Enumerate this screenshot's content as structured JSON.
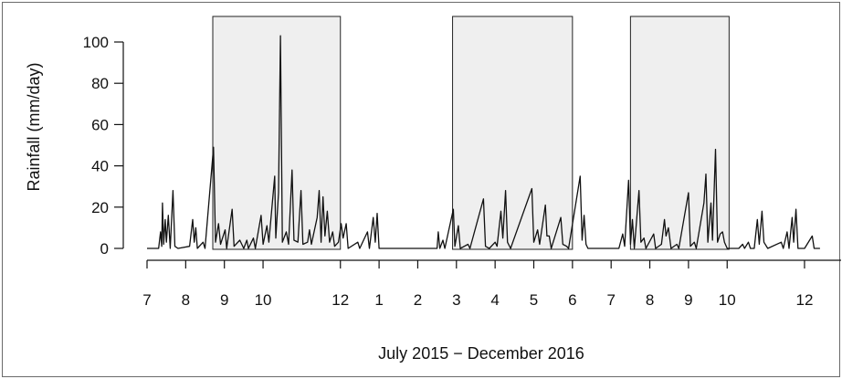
{
  "chart_data": {
    "type": "line",
    "xlabel": "July 2015 − December 2016",
    "ylabel": "Rainfall (mm/day)",
    "ylim": [
      0,
      105
    ],
    "y_ticks": [
      0,
      20,
      40,
      60,
      80,
      100
    ],
    "x_ticks": [
      {
        "label": "7",
        "month": 0.0
      },
      {
        "label": "8",
        "month": 1.0
      },
      {
        "label": "9",
        "month": 2.0
      },
      {
        "label": "10",
        "month": 3.0
      },
      {
        "label": "12",
        "month": 5.0
      },
      {
        "label": "1",
        "month": 6.0
      },
      {
        "label": "2",
        "month": 7.0
      },
      {
        "label": "3",
        "month": 8.0
      },
      {
        "label": "4",
        "month": 9.0
      },
      {
        "label": "5",
        "month": 10.0
      },
      {
        "label": "6",
        "month": 11.0
      },
      {
        "label": "7",
        "month": 12.0
      },
      {
        "label": "8",
        "month": 13.0
      },
      {
        "label": "9",
        "month": 14.0
      },
      {
        "label": "10",
        "month": 15.0
      },
      {
        "label": "12",
        "month": 17.0
      }
    ],
    "shaded_periods": [
      {
        "start_month": 1.7,
        "end_month": 5.0
      },
      {
        "start_month": 7.9,
        "end_month": 11.0
      },
      {
        "start_month": 12.5,
        "end_month": 15.05
      }
    ],
    "shade_color": "#efefef",
    "line_color": "#111111",
    "grid": false,
    "series": [
      {
        "values": [
          [
            0.0,
            0
          ],
          [
            0.3,
            0
          ],
          [
            0.35,
            8
          ],
          [
            0.38,
            1
          ],
          [
            0.4,
            22
          ],
          [
            0.43,
            2
          ],
          [
            0.47,
            14
          ],
          [
            0.5,
            3
          ],
          [
            0.55,
            16
          ],
          [
            0.6,
            0
          ],
          [
            0.67,
            28
          ],
          [
            0.72,
            1
          ],
          [
            0.8,
            0
          ],
          [
            1.1,
            1
          ],
          [
            1.18,
            14
          ],
          [
            1.22,
            3
          ],
          [
            1.26,
            10
          ],
          [
            1.3,
            0
          ],
          [
            1.45,
            3
          ],
          [
            1.5,
            0
          ],
          [
            1.72,
            49
          ],
          [
            1.77,
            3
          ],
          [
            1.85,
            12
          ],
          [
            1.9,
            2
          ],
          [
            2.02,
            9
          ],
          [
            2.06,
            0
          ],
          [
            2.2,
            19
          ],
          [
            2.25,
            1
          ],
          [
            2.4,
            4
          ],
          [
            2.5,
            0
          ],
          [
            2.58,
            4
          ],
          [
            2.62,
            0
          ],
          [
            2.75,
            5
          ],
          [
            2.8,
            0
          ],
          [
            2.95,
            16
          ],
          [
            3.0,
            2
          ],
          [
            3.1,
            11
          ],
          [
            3.15,
            3
          ],
          [
            3.3,
            35
          ],
          [
            3.33,
            5
          ],
          [
            3.4,
            27
          ],
          [
            3.45,
            103
          ],
          [
            3.5,
            3
          ],
          [
            3.6,
            8
          ],
          [
            3.66,
            2
          ],
          [
            3.75,
            38
          ],
          [
            3.8,
            4
          ],
          [
            3.9,
            3
          ],
          [
            3.98,
            28
          ],
          [
            4.03,
            2
          ],
          [
            4.15,
            3
          ],
          [
            4.2,
            9
          ],
          [
            4.25,
            2
          ],
          [
            4.4,
            15
          ],
          [
            4.45,
            28
          ],
          [
            4.5,
            3
          ],
          [
            4.55,
            25
          ],
          [
            4.6,
            6
          ],
          [
            4.66,
            18
          ],
          [
            4.72,
            3
          ],
          [
            4.8,
            8
          ],
          [
            4.85,
            1
          ],
          [
            4.95,
            3
          ],
          [
            5.02,
            12
          ],
          [
            5.07,
            5
          ],
          [
            5.15,
            12
          ],
          [
            5.2,
            0
          ],
          [
            5.45,
            3
          ],
          [
            5.5,
            0
          ],
          [
            5.7,
            8
          ],
          [
            5.75,
            0
          ],
          [
            5.85,
            15
          ],
          [
            5.9,
            3
          ],
          [
            5.95,
            17
          ],
          [
            6.0,
            0
          ],
          [
            6.5,
            0
          ],
          [
            7.0,
            0
          ],
          [
            7.5,
            0
          ],
          [
            7.53,
            8
          ],
          [
            7.57,
            0
          ],
          [
            7.65,
            4
          ],
          [
            7.7,
            0
          ],
          [
            7.92,
            19
          ],
          [
            7.96,
            1
          ],
          [
            8.05,
            11
          ],
          [
            8.1,
            0
          ],
          [
            8.3,
            2
          ],
          [
            8.35,
            0
          ],
          [
            8.7,
            24
          ],
          [
            8.75,
            1
          ],
          [
            8.85,
            0
          ],
          [
            9.0,
            3
          ],
          [
            9.05,
            1
          ],
          [
            9.15,
            18
          ],
          [
            9.2,
            5
          ],
          [
            9.27,
            28
          ],
          [
            9.32,
            3
          ],
          [
            9.4,
            0
          ],
          [
            9.95,
            29
          ],
          [
            10.0,
            3
          ],
          [
            10.1,
            9
          ],
          [
            10.15,
            2
          ],
          [
            10.3,
            21
          ],
          [
            10.34,
            6
          ],
          [
            10.4,
            6
          ],
          [
            10.45,
            0
          ],
          [
            10.7,
            15
          ],
          [
            10.75,
            2
          ],
          [
            10.85,
            1
          ],
          [
            10.9,
            0
          ],
          [
            11.2,
            35
          ],
          [
            11.25,
            4
          ],
          [
            11.3,
            16
          ],
          [
            11.35,
            2
          ],
          [
            11.4,
            0
          ],
          [
            11.6,
            0
          ],
          [
            12.2,
            0
          ],
          [
            12.3,
            7
          ],
          [
            12.35,
            1
          ],
          [
            12.45,
            33
          ],
          [
            12.5,
            2
          ],
          [
            12.55,
            14
          ],
          [
            12.6,
            0
          ],
          [
            12.72,
            28
          ],
          [
            12.77,
            3
          ],
          [
            12.85,
            5
          ],
          [
            12.9,
            0
          ],
          [
            13.1,
            7
          ],
          [
            13.15,
            0
          ],
          [
            13.3,
            2
          ],
          [
            13.38,
            14
          ],
          [
            13.42,
            6
          ],
          [
            13.48,
            10
          ],
          [
            13.55,
            0
          ],
          [
            13.7,
            2
          ],
          [
            13.75,
            0
          ],
          [
            14.0,
            27
          ],
          [
            14.05,
            1
          ],
          [
            14.15,
            3
          ],
          [
            14.2,
            0
          ],
          [
            14.4,
            22
          ],
          [
            14.45,
            36
          ],
          [
            14.5,
            3
          ],
          [
            14.58,
            22
          ],
          [
            14.62,
            4
          ],
          [
            14.7,
            48
          ],
          [
            14.75,
            3
          ],
          [
            14.82,
            7
          ],
          [
            14.88,
            8
          ],
          [
            14.93,
            3
          ],
          [
            15.0,
            0
          ],
          [
            15.3,
            0
          ],
          [
            15.4,
            2
          ],
          [
            15.45,
            0
          ],
          [
            15.55,
            3
          ],
          [
            15.6,
            0
          ],
          [
            15.7,
            0
          ],
          [
            15.78,
            14
          ],
          [
            15.83,
            2
          ],
          [
            15.9,
            18
          ],
          [
            15.95,
            3
          ],
          [
            16.05,
            0
          ],
          [
            16.4,
            3
          ],
          [
            16.45,
            0
          ],
          [
            16.55,
            8
          ],
          [
            16.6,
            0
          ],
          [
            16.68,
            15
          ],
          [
            16.72,
            3
          ],
          [
            16.78,
            19
          ],
          [
            16.83,
            0
          ],
          [
            17.0,
            0
          ],
          [
            17.2,
            6
          ],
          [
            17.25,
            0
          ],
          [
            17.4,
            0
          ]
        ]
      }
    ]
  }
}
